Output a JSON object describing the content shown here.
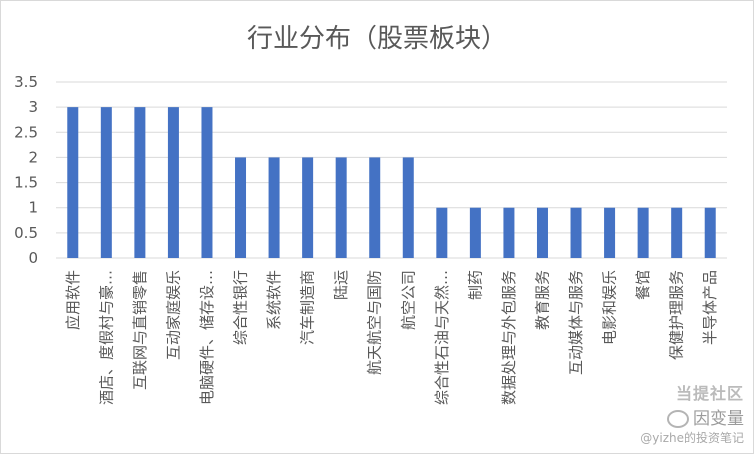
{
  "chart_data": {
    "type": "bar",
    "title": "行业分布（股票板块）",
    "categories": [
      "应用软件",
      "酒店、度假村与豪…",
      "互联网与直销零售",
      "互动家庭娱乐",
      "电脑硬件、储存设…",
      "综合性银行",
      "系统软件",
      "汽车制造商",
      "陆运",
      "航天航空与国防",
      "航空公司",
      "综合性石油与天然…",
      "制药",
      "数据处理与外包服务",
      "教育服务",
      "互动媒体与服务",
      "电影和娱乐",
      "餐馆",
      "保健护理服务",
      "半导体产品"
    ],
    "values": [
      3,
      3,
      3,
      3,
      3,
      2,
      2,
      2,
      2,
      2,
      2,
      1,
      1,
      1,
      1,
      1,
      1,
      1,
      1,
      1
    ],
    "ylim": [
      0,
      3.5
    ],
    "yticks": [
      "0",
      "0.5",
      "1",
      "1.5",
      "2",
      "2.5",
      "3",
      "3.5"
    ],
    "bar_color": "#4472C4",
    "grid": true,
    "legend": "none"
  },
  "watermark": {
    "line1": "当提社区",
    "line2": "因变量",
    "line3": "@yizhe的投资笔记"
  }
}
